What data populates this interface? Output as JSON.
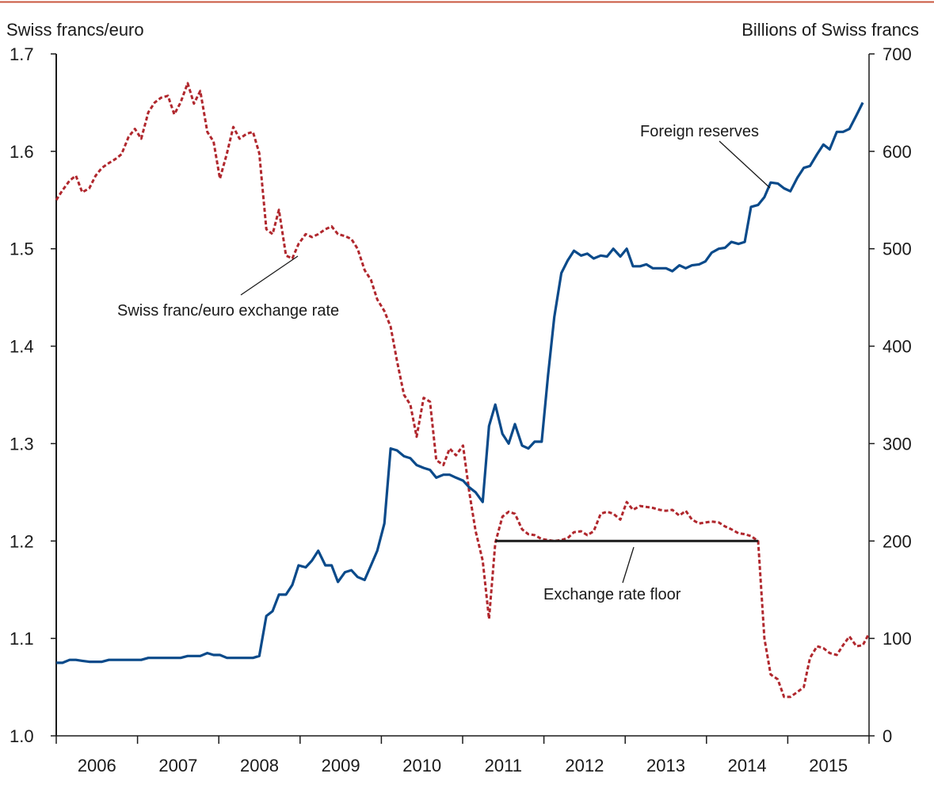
{
  "chart_data": {
    "type": "line",
    "y_left_label": "Swiss francs/euro",
    "y_right_label": "Billions of Swiss francs",
    "y_left_range": [
      1.0,
      1.7
    ],
    "y_left_ticks": [
      "1.0",
      "1.1",
      "1.2",
      "1.3",
      "1.4",
      "1.5",
      "1.6",
      "1.7"
    ],
    "y_right_range": [
      0,
      700
    ],
    "y_right_ticks": [
      "0",
      "100",
      "200",
      "300",
      "400",
      "500",
      "600",
      "700"
    ],
    "x_range": [
      2006.0,
      2015.92
    ],
    "x_tick_labels": [
      "2006",
      "2007",
      "2008",
      "2009",
      "2010",
      "2011",
      "2012",
      "2013",
      "2014",
      "2015"
    ],
    "grid": false,
    "colors": {
      "exchange_rate": "#b0272d",
      "reserves": "#0a4a8a",
      "floor": "#1a1a1a",
      "rule": "#c8553d"
    },
    "annotations": {
      "exchange_rate": "Swiss franc/euro exchange rate",
      "reserves": "Foreign reserves",
      "floor": "Exchange rate floor"
    },
    "series": [
      {
        "key": "exchange_rate",
        "axis": "left",
        "style": "dashed",
        "points": [
          [
            2006.0,
            1.55
          ],
          [
            2006.08,
            1.56
          ],
          [
            2006.17,
            1.57
          ],
          [
            2006.25,
            1.575
          ],
          [
            2006.33,
            1.558
          ],
          [
            2006.42,
            1.562
          ],
          [
            2006.5,
            1.575
          ],
          [
            2006.58,
            1.583
          ],
          [
            2006.67,
            1.588
          ],
          [
            2006.75,
            1.592
          ],
          [
            2006.83,
            1.597
          ],
          [
            2006.92,
            1.615
          ],
          [
            2007.0,
            1.623
          ],
          [
            2007.08,
            1.613
          ],
          [
            2007.17,
            1.64
          ],
          [
            2007.25,
            1.65
          ],
          [
            2007.33,
            1.655
          ],
          [
            2007.42,
            1.657
          ],
          [
            2007.5,
            1.638
          ],
          [
            2007.58,
            1.65
          ],
          [
            2007.67,
            1.67
          ],
          [
            2007.75,
            1.649
          ],
          [
            2007.83,
            1.662
          ],
          [
            2007.92,
            1.62
          ],
          [
            2008.0,
            1.61
          ],
          [
            2008.08,
            1.572
          ],
          [
            2008.17,
            1.598
          ],
          [
            2008.25,
            1.625
          ],
          [
            2008.33,
            1.613
          ],
          [
            2008.42,
            1.618
          ],
          [
            2008.5,
            1.62
          ],
          [
            2008.58,
            1.598
          ],
          [
            2008.67,
            1.52
          ],
          [
            2008.75,
            1.515
          ],
          [
            2008.83,
            1.54
          ],
          [
            2008.92,
            1.493
          ],
          [
            2009.0,
            1.49
          ],
          [
            2009.08,
            1.505
          ],
          [
            2009.17,
            1.515
          ],
          [
            2009.25,
            1.512
          ],
          [
            2009.33,
            1.515
          ],
          [
            2009.42,
            1.52
          ],
          [
            2009.5,
            1.523
          ],
          [
            2009.58,
            1.515
          ],
          [
            2009.67,
            1.513
          ],
          [
            2009.75,
            1.51
          ],
          [
            2009.83,
            1.5
          ],
          [
            2009.92,
            1.478
          ],
          [
            2010.0,
            1.468
          ],
          [
            2010.08,
            1.448
          ],
          [
            2010.17,
            1.436
          ],
          [
            2010.25,
            1.42
          ],
          [
            2010.33,
            1.385
          ],
          [
            2010.42,
            1.35
          ],
          [
            2010.5,
            1.34
          ],
          [
            2010.58,
            1.307
          ],
          [
            2010.67,
            1.347
          ],
          [
            2010.75,
            1.343
          ],
          [
            2010.83,
            1.283
          ],
          [
            2010.92,
            1.278
          ],
          [
            2011.0,
            1.295
          ],
          [
            2011.08,
            1.288
          ],
          [
            2011.17,
            1.298
          ],
          [
            2011.25,
            1.25
          ],
          [
            2011.33,
            1.21
          ],
          [
            2011.42,
            1.18
          ],
          [
            2011.5,
            1.12
          ],
          [
            2011.58,
            1.198
          ],
          [
            2011.67,
            1.225
          ],
          [
            2011.75,
            1.23
          ],
          [
            2011.83,
            1.228
          ],
          [
            2011.92,
            1.212
          ],
          [
            2012.0,
            1.207
          ],
          [
            2012.08,
            1.206
          ],
          [
            2012.17,
            1.202
          ],
          [
            2012.25,
            1.201
          ],
          [
            2012.33,
            1.2
          ],
          [
            2012.42,
            1.201
          ],
          [
            2012.5,
            1.203
          ],
          [
            2012.58,
            1.209
          ],
          [
            2012.67,
            1.21
          ],
          [
            2012.75,
            1.206
          ],
          [
            2012.83,
            1.21
          ],
          [
            2012.92,
            1.228
          ],
          [
            2013.0,
            1.23
          ],
          [
            2013.08,
            1.228
          ],
          [
            2013.17,
            1.222
          ],
          [
            2013.25,
            1.24
          ],
          [
            2013.33,
            1.232
          ],
          [
            2013.42,
            1.236
          ],
          [
            2013.5,
            1.235
          ],
          [
            2013.58,
            1.234
          ],
          [
            2013.67,
            1.232
          ],
          [
            2013.75,
            1.231
          ],
          [
            2013.83,
            1.232
          ],
          [
            2013.92,
            1.226
          ],
          [
            2014.0,
            1.231
          ],
          [
            2014.08,
            1.222
          ],
          [
            2014.17,
            1.218
          ],
          [
            2014.25,
            1.219
          ],
          [
            2014.33,
            1.22
          ],
          [
            2014.42,
            1.219
          ],
          [
            2014.5,
            1.215
          ],
          [
            2014.58,
            1.212
          ],
          [
            2014.67,
            1.208
          ],
          [
            2014.75,
            1.207
          ],
          [
            2014.83,
            1.205
          ],
          [
            2014.92,
            1.2
          ],
          [
            2015.0,
            1.1
          ],
          [
            2015.08,
            1.063
          ],
          [
            2015.17,
            1.058
          ],
          [
            2015.25,
            1.04
          ],
          [
            2015.33,
            1.04
          ],
          [
            2015.42,
            1.045
          ],
          [
            2015.5,
            1.05
          ],
          [
            2015.58,
            1.08
          ],
          [
            2015.67,
            1.092
          ],
          [
            2015.75,
            1.09
          ],
          [
            2015.83,
            1.085
          ],
          [
            2015.92,
            1.083
          ],
          [
            2016.0,
            1.093
          ],
          [
            2016.08,
            1.102
          ],
          [
            2016.17,
            1.092
          ],
          [
            2016.25,
            1.093
          ],
          [
            2016.33,
            1.105
          ]
        ]
      },
      {
        "key": "reserves",
        "axis": "right",
        "style": "solid",
        "points": [
          [
            2006.0,
            75
          ],
          [
            2006.08,
            75
          ],
          [
            2006.17,
            78
          ],
          [
            2006.25,
            78
          ],
          [
            2006.33,
            77
          ],
          [
            2006.42,
            76
          ],
          [
            2006.5,
            76
          ],
          [
            2006.58,
            76
          ],
          [
            2006.67,
            78
          ],
          [
            2006.75,
            78
          ],
          [
            2006.83,
            78
          ],
          [
            2006.92,
            78
          ],
          [
            2007.0,
            78
          ],
          [
            2007.08,
            78
          ],
          [
            2007.17,
            80
          ],
          [
            2007.25,
            80
          ],
          [
            2007.33,
            80
          ],
          [
            2007.42,
            80
          ],
          [
            2007.5,
            80
          ],
          [
            2007.58,
            80
          ],
          [
            2007.67,
            82
          ],
          [
            2007.75,
            82
          ],
          [
            2007.83,
            82
          ],
          [
            2007.92,
            85
          ],
          [
            2008.0,
            83
          ],
          [
            2008.08,
            83
          ],
          [
            2008.17,
            80
          ],
          [
            2008.25,
            80
          ],
          [
            2008.33,
            80
          ],
          [
            2008.42,
            80
          ],
          [
            2008.5,
            80
          ],
          [
            2008.58,
            82
          ],
          [
            2008.67,
            123
          ],
          [
            2008.75,
            128
          ],
          [
            2008.83,
            145
          ],
          [
            2008.92,
            145
          ],
          [
            2009.0,
            155
          ],
          [
            2009.08,
            175
          ],
          [
            2009.17,
            173
          ],
          [
            2009.25,
            180
          ],
          [
            2009.33,
            190
          ],
          [
            2009.42,
            175
          ],
          [
            2009.5,
            175
          ],
          [
            2009.58,
            158
          ],
          [
            2009.67,
            168
          ],
          [
            2009.75,
            170
          ],
          [
            2009.83,
            163
          ],
          [
            2009.92,
            160
          ],
          [
            2010.0,
            175
          ],
          [
            2010.08,
            190
          ],
          [
            2010.17,
            218
          ],
          [
            2010.25,
            295
          ],
          [
            2010.33,
            293
          ],
          [
            2010.42,
            287
          ],
          [
            2010.5,
            285
          ],
          [
            2010.58,
            278
          ],
          [
            2010.67,
            275
          ],
          [
            2010.75,
            273
          ],
          [
            2010.83,
            265
          ],
          [
            2010.92,
            268
          ],
          [
            2011.0,
            268
          ],
          [
            2011.08,
            265
          ],
          [
            2011.17,
            262
          ],
          [
            2011.25,
            255
          ],
          [
            2011.33,
            250
          ],
          [
            2011.42,
            240
          ],
          [
            2011.5,
            318
          ],
          [
            2011.58,
            340
          ],
          [
            2011.67,
            310
          ],
          [
            2011.75,
            300
          ],
          [
            2011.83,
            320
          ],
          [
            2011.92,
            298
          ],
          [
            2012.0,
            295
          ],
          [
            2012.08,
            302
          ],
          [
            2012.17,
            302
          ],
          [
            2012.25,
            370
          ],
          [
            2012.33,
            430
          ],
          [
            2012.42,
            475
          ],
          [
            2012.5,
            488
          ],
          [
            2012.58,
            498
          ],
          [
            2012.67,
            493
          ],
          [
            2012.75,
            495
          ],
          [
            2012.83,
            490
          ],
          [
            2012.92,
            493
          ],
          [
            2013.0,
            492
          ],
          [
            2013.08,
            500
          ],
          [
            2013.17,
            492
          ],
          [
            2013.25,
            500
          ],
          [
            2013.33,
            482
          ],
          [
            2013.42,
            482
          ],
          [
            2013.5,
            484
          ],
          [
            2013.58,
            480
          ],
          [
            2013.67,
            480
          ],
          [
            2013.75,
            480
          ],
          [
            2013.83,
            477
          ],
          [
            2013.92,
            483
          ],
          [
            2014.0,
            480
          ],
          [
            2014.08,
            483
          ],
          [
            2014.17,
            484
          ],
          [
            2014.25,
            487
          ],
          [
            2014.33,
            496
          ],
          [
            2014.42,
            500
          ],
          [
            2014.5,
            501
          ],
          [
            2014.58,
            507
          ],
          [
            2014.67,
            505
          ],
          [
            2014.75,
            507
          ],
          [
            2014.83,
            543
          ],
          [
            2014.92,
            545
          ],
          [
            2015.0,
            553
          ],
          [
            2015.08,
            568
          ],
          [
            2015.17,
            567
          ],
          [
            2015.25,
            562
          ],
          [
            2015.33,
            559
          ],
          [
            2015.42,
            573
          ],
          [
            2015.5,
            583
          ],
          [
            2015.58,
            585
          ],
          [
            2015.67,
            597
          ],
          [
            2015.75,
            607
          ],
          [
            2015.83,
            602
          ],
          [
            2015.92,
            620
          ],
          [
            2016.0,
            620
          ],
          [
            2016.08,
            623
          ],
          [
            2016.17,
            637
          ],
          [
            2016.25,
            650
          ]
        ]
      }
    ],
    "floor_line": {
      "value": 1.2,
      "x_start": 2011.58,
      "x_end": 2014.92
    }
  }
}
